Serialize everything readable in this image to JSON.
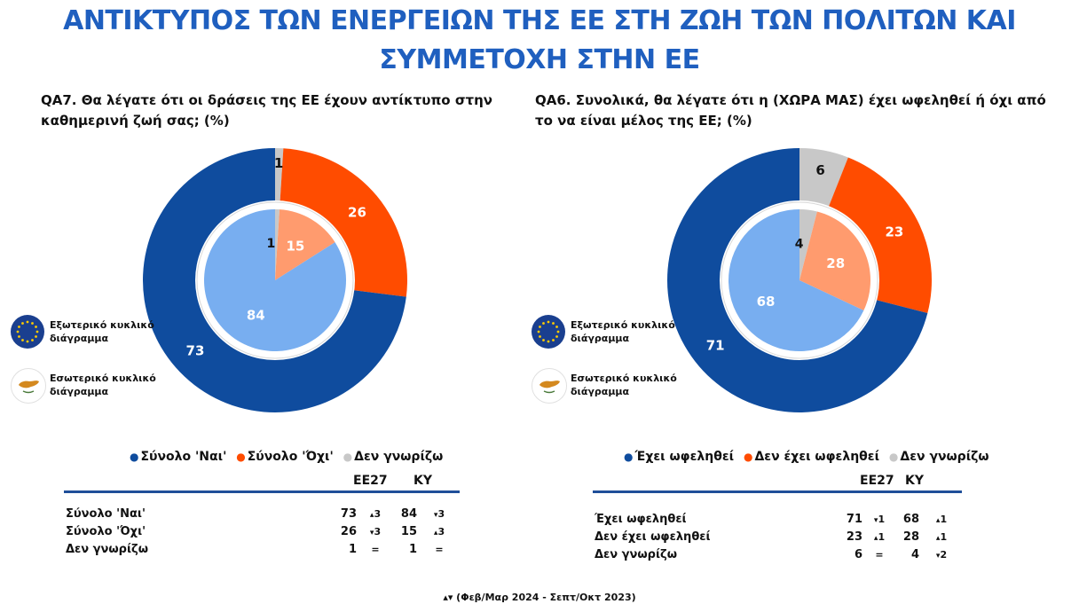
{
  "page": {
    "title_line1": "ΑΝΤΙΚΤΥΠΟΣ ΤΩΝ ΕΝΕΡΓΕΙΩΝ ΤΗΣ ΕΕ ΣΤΗ ΖΩΗ ΤΩΝ ΠΟΛΙΤΩΝ ΚΑΙ",
    "title_line2": "ΣΥΜΜΕΤΟΧΗ ΣΤΗΝ ΕΕ",
    "footnote": "▴▾ (Φεβ/Μαρ 2024 - Σεπτ/Οκτ 2023)"
  },
  "legend_keys": {
    "outer": "Εξωτερικό κυκλικό διάγραμμα",
    "inner": "Εσωτερικό κυκλικό διάγραμμα"
  },
  "colors": {
    "title": "#1f5fbf",
    "outer_yes": "#0f4c9e",
    "outer_no": "#ff4c00",
    "outer_dk": "#c8c8c8",
    "inner_yes": "#78aef0",
    "inner_no": "#ff9b6e",
    "inner_dk": "#c8c8c8",
    "ring_gap": "#d8d8d8"
  },
  "chart_data": [
    {
      "type": "pie",
      "question": "QA7. Θα λέγατε ότι οι δράσεις της ΕΕ έχουν αντίκτυπο στην καθημερινή ζωή σας; (%)",
      "categories": [
        "Σύνολο 'Ναι'",
        "Σύνολο 'Όχι'",
        "Δεν γνωρίζω"
      ],
      "series": [
        {
          "name": "ΕΕ27",
          "ring": "outer",
          "values": [
            73,
            26,
            1
          ]
        },
        {
          "name": "ΚΥ",
          "ring": "inner",
          "values": [
            84,
            15,
            1
          ]
        }
      ],
      "legend": [
        "Σύνολο 'Ναι'",
        "Σύνολο 'Όχι'",
        "Δεν γνωρίζω"
      ],
      "table": {
        "headers": [
          "ΕΕ27",
          "ΚΥ"
        ],
        "rows": [
          {
            "label": "Σύνολο 'Ναι'",
            "eu": "73",
            "eu_dir": "▴",
            "eu_chg": "3",
            "cy": "84",
            "cy_dir": "▾",
            "cy_chg": "3"
          },
          {
            "label": "Σύνολο 'Όχι'",
            "eu": "26",
            "eu_dir": "▾",
            "eu_chg": "3",
            "cy": "15",
            "cy_dir": "▴",
            "cy_chg": "3"
          },
          {
            "label": "Δεν γνωρίζω",
            "eu": "1",
            "eu_dir": "",
            "eu_chg": "=",
            "cy": "1",
            "cy_dir": "",
            "cy_chg": "="
          }
        ]
      }
    },
    {
      "type": "pie",
      "question": "QA6. Συνολικά, θα λέγατε ότι η (ΧΩΡΑ ΜΑΣ) έχει ωφεληθεί ή όχι από το να είναι μέλος της ΕΕ; (%)",
      "categories": [
        "Έχει ωφεληθεί",
        "Δεν έχει ωφεληθεί",
        "Δεν γνωρίζω"
      ],
      "series": [
        {
          "name": "ΕΕ27",
          "ring": "outer",
          "values": [
            71,
            23,
            6
          ]
        },
        {
          "name": "ΚΥ",
          "ring": "inner",
          "values": [
            68,
            28,
            4
          ]
        }
      ],
      "legend": [
        "Έχει ωφεληθεί",
        "Δεν έχει ωφεληθεί",
        "Δεν γνωρίζω"
      ],
      "table": {
        "headers": [
          "ΕΕ27",
          "ΚΥ"
        ],
        "rows": [
          {
            "label": "Έχει ωφεληθεί",
            "eu": "71",
            "eu_dir": "▾",
            "eu_chg": "1",
            "cy": "68",
            "cy_dir": "▴",
            "cy_chg": "1"
          },
          {
            "label": "Δεν έχει ωφεληθεί",
            "eu": "23",
            "eu_dir": "▴",
            "eu_chg": "1",
            "cy": "28",
            "cy_dir": "▴",
            "cy_chg": "1"
          },
          {
            "label": "Δεν γνωρίζω",
            "eu": "6",
            "eu_dir": "",
            "eu_chg": "=",
            "cy": "4",
            "cy_dir": "▾",
            "cy_chg": "2"
          }
        ]
      }
    }
  ]
}
